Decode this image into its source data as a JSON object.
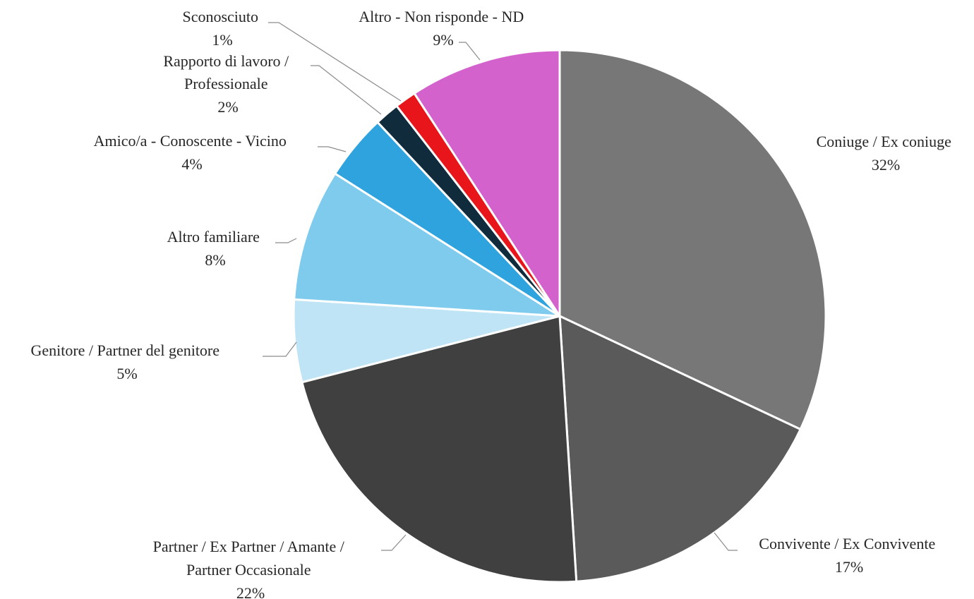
{
  "chart_data": {
    "type": "pie",
    "start_angle_deg": 0,
    "direction": "clockwise",
    "slices": [
      {
        "label": "Coniuge / Ex coniuge",
        "percent_label": "32%",
        "value": 32,
        "color": "#777777"
      },
      {
        "label": "Convivente / Ex Convivente",
        "percent_label": "17%",
        "value": 17,
        "color": "#5a5a5a"
      },
      {
        "label": "Partner / Ex Partner / Amante / Partner Occasionale",
        "percent_label": "22%",
        "value": 22,
        "color": "#404040"
      },
      {
        "label": "Genitore / Partner del genitore",
        "percent_label": "5%",
        "value": 5,
        "color": "#bfe4f6"
      },
      {
        "label": "Altro familiare",
        "percent_label": "8%",
        "value": 8,
        "color": "#7ecbee"
      },
      {
        "label": "Amico/a - Conoscente - Vicino",
        "percent_label": "4%",
        "value": 4,
        "color": "#2fa3dd"
      },
      {
        "label": "Rapporto di lavoro / Professionale",
        "percent_label": "2%",
        "value": 1.5,
        "color": "#0f2b3c"
      },
      {
        "label": "Sconosciuto",
        "percent_label": "1%",
        "value": 1.3,
        "color": "#e8161b"
      },
      {
        "label": "Altro - Non risponde - ND",
        "percent_label": "9%",
        "value": 9.2,
        "color": "#d462cc"
      }
    ]
  }
}
